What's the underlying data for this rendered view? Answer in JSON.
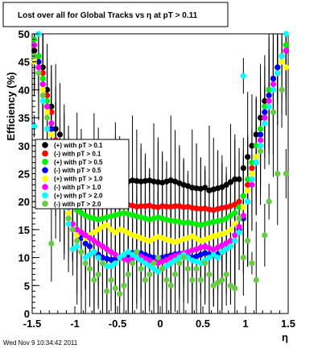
{
  "chart_data": {
    "type": "scatter",
    "title": "Lost over all for Global Tracks vs   η at pT > 0.11",
    "xlabel": "η",
    "ylabel": "Efficiency (%)",
    "xlim": [
      -1.5,
      1.5
    ],
    "ylim": [
      0,
      50
    ],
    "x_ticks": [
      "-1.5",
      "-1",
      "-0.5",
      "0",
      "0.5",
      "1",
      "1.5"
    ],
    "y_ticks": [
      "0",
      "5",
      "10",
      "15",
      "20",
      "25",
      "30",
      "35",
      "40",
      "45",
      "50"
    ],
    "grid": false,
    "legend_position": "center-left",
    "footer": "Wed Nov  9 10:34:42 2011",
    "series": [
      {
        "name": "(+) with pT > 0.1",
        "color": "#000000",
        "x": [
          -1.475,
          -1.425,
          -1.375,
          -1.325,
          -1.275,
          -1.225,
          -1.175,
          -1.125,
          -1.075,
          -1.025,
          -0.975,
          -0.925,
          -0.875,
          -0.825,
          -0.775,
          -0.725,
          -0.675,
          -0.625,
          -0.575,
          -0.525,
          -0.475,
          -0.425,
          -0.375,
          -0.325,
          -0.275,
          -0.225,
          -0.175,
          -0.125,
          -0.075,
          -0.025,
          0.025,
          0.075,
          0.125,
          0.175,
          0.225,
          0.275,
          0.325,
          0.375,
          0.425,
          0.475,
          0.525,
          0.575,
          0.625,
          0.675,
          0.725,
          0.775,
          0.825,
          0.875,
          0.925,
          0.975,
          1.025,
          1.075,
          1.125,
          1.175,
          1.225,
          1.275,
          1.325,
          1.375,
          1.425,
          1.475
        ],
        "values": [
          47,
          46,
          44,
          40,
          37,
          33,
          32,
          29,
          27,
          26,
          25.5,
          25,
          24.5,
          24.3,
          24.2,
          24,
          24,
          24,
          24,
          23.8,
          23.7,
          23.6,
          23.6,
          23.8,
          23.7,
          23.6,
          23.7,
          23.8,
          23.6,
          23.5,
          23.4,
          23.6,
          23.8,
          23.6,
          23.3,
          23,
          22.8,
          22.5,
          22.4,
          22.3,
          22.5,
          22,
          22.2,
          22.4,
          22.6,
          23,
          23.5,
          24,
          24,
          26,
          28,
          30,
          32,
          35,
          38,
          40,
          42,
          44,
          46,
          47
        ]
      },
      {
        "name": "(-) with pT > 0.1",
        "color": "#ff0000",
        "x": [
          -1.475,
          -1.425,
          -1.375,
          -1.325,
          -1.275,
          -1.225,
          -1.175,
          -1.125,
          -1.075,
          -1.025,
          -0.975,
          -0.925,
          -0.875,
          -0.825,
          -0.775,
          -0.725,
          -0.675,
          -0.625,
          -0.575,
          -0.525,
          -0.475,
          -0.425,
          -0.375,
          -0.325,
          -0.275,
          -0.225,
          -0.175,
          -0.125,
          -0.075,
          -0.025,
          0.025,
          0.075,
          0.125,
          0.175,
          0.225,
          0.275,
          0.325,
          0.375,
          0.425,
          0.475,
          0.525,
          0.575,
          0.625,
          0.675,
          0.725,
          0.775,
          0.825,
          0.875,
          0.925,
          0.975,
          1.025,
          1.075,
          1.125,
          1.175,
          1.225,
          1.275,
          1.325,
          1.375,
          1.425,
          1.475
        ],
        "values": [
          48,
          45,
          43,
          39,
          36,
          31,
          30,
          27,
          24,
          22,
          20.5,
          20,
          19.8,
          19.6,
          19.5,
          19.2,
          19.5,
          19.4,
          19.3,
          19.2,
          19.1,
          19.3,
          19.4,
          19.3,
          19.1,
          19.2,
          19.2,
          19.3,
          19.1,
          19,
          19.2,
          19.1,
          19.1,
          19.2,
          19.2,
          19,
          19.1,
          18.9,
          18.8,
          18.7,
          18.8,
          18.6,
          18.5,
          18.7,
          18.9,
          19,
          19.2,
          19.5,
          20,
          21,
          23,
          26,
          28,
          31,
          35,
          38,
          40,
          43,
          45,
          48
        ]
      },
      {
        "name": "(+) with pT > 0.5",
        "color": "#00ee00",
        "x": [
          -1.475,
          -1.425,
          -1.375,
          -1.325,
          -1.275,
          -1.225,
          -1.175,
          -1.125,
          -1.075,
          -1.025,
          -0.975,
          -0.925,
          -0.875,
          -0.825,
          -0.775,
          -0.725,
          -0.675,
          -0.625,
          -0.575,
          -0.525,
          -0.475,
          -0.425,
          -0.375,
          -0.325,
          -0.275,
          -0.225,
          -0.175,
          -0.125,
          -0.075,
          -0.025,
          0.025,
          0.075,
          0.125,
          0.175,
          0.225,
          0.275,
          0.325,
          0.375,
          0.425,
          0.475,
          0.525,
          0.575,
          0.625,
          0.675,
          0.725,
          0.775,
          0.825,
          0.875,
          0.925,
          0.975,
          1.025,
          1.075,
          1.125,
          1.175,
          1.225,
          1.275,
          1.325,
          1.375,
          1.425,
          1.475
        ],
        "values": [
          49,
          46,
          42,
          38,
          34,
          30,
          28,
          25,
          22,
          19.5,
          18.5,
          18,
          17.5,
          17.2,
          17,
          16.8,
          17,
          17.2,
          17.4,
          17.6,
          17.8,
          18,
          17.8,
          17.6,
          17.4,
          17.2,
          17,
          16.8,
          17,
          17.2,
          17,
          16.8,
          16.6,
          16.5,
          16.4,
          16.2,
          16.3,
          16.1,
          16,
          15.8,
          16,
          16.2,
          16.4,
          16.5,
          16.7,
          17,
          17.5,
          18,
          19,
          21,
          24,
          27,
          30,
          33,
          37,
          40,
          42,
          44,
          46,
          48
        ]
      },
      {
        "name": "(-) with pT > 0.5",
        "color": "#0000ff",
        "x": [
          -1.475,
          -1.425,
          -1.375,
          -1.325,
          -1.275,
          -1.225,
          -1.175,
          -1.125,
          -1.075,
          -1.025,
          -0.975,
          -0.925,
          -0.875,
          -0.825,
          -0.775,
          -0.725,
          -0.675,
          -0.625,
          -0.575,
          -0.525,
          -0.475,
          -0.425,
          -0.375,
          -0.325,
          -0.275,
          -0.225,
          -0.175,
          -0.125,
          -0.075,
          -0.025,
          0.025,
          0.075,
          0.125,
          0.175,
          0.225,
          0.275,
          0.325,
          0.375,
          0.425,
          0.475,
          0.525,
          0.575,
          0.625,
          0.675,
          0.725,
          0.775,
          0.825,
          0.875,
          0.925,
          0.975,
          1.025,
          1.075,
          1.125,
          1.175,
          1.225,
          1.275,
          1.325,
          1.375,
          1.425,
          1.475
        ],
        "values": [
          46,
          45,
          41,
          37,
          33,
          29,
          26,
          22,
          18,
          15,
          14,
          13.5,
          12.5,
          12,
          11,
          10.5,
          10,
          9.8,
          9.6,
          9.7,
          10,
          10.3,
          10.5,
          10.8,
          11,
          10.8,
          10.5,
          10.2,
          10,
          9.8,
          10,
          10.2,
          10.4,
          10.6,
          10.7,
          10.5,
          10.3,
          10,
          10.2,
          10.5,
          10.8,
          10.6,
          10.4,
          10.6,
          11,
          11.5,
          12,
          13,
          15,
          17,
          20,
          24,
          28,
          32,
          36,
          39,
          42,
          44,
          46,
          47
        ]
      },
      {
        "name": "(+) with pT > 1.0",
        "color": "#ffff00",
        "x": [
          -1.475,
          -1.425,
          -1.375,
          -1.325,
          -1.275,
          -1.225,
          -1.175,
          -1.125,
          -1.075,
          -1.025,
          -0.975,
          -0.925,
          -0.875,
          -0.825,
          -0.775,
          -0.725,
          -0.675,
          -0.625,
          -0.575,
          -0.525,
          -0.475,
          -0.425,
          -0.375,
          -0.325,
          -0.275,
          -0.225,
          -0.175,
          -0.125,
          -0.075,
          -0.025,
          0.025,
          0.075,
          0.125,
          0.175,
          0.225,
          0.275,
          0.325,
          0.375,
          0.425,
          0.475,
          0.525,
          0.575,
          0.625,
          0.675,
          0.725,
          0.775,
          0.825,
          0.875,
          0.925,
          0.975,
          1.025,
          1.075,
          1.125,
          1.175,
          1.225,
          1.275,
          1.325,
          1.375,
          1.425,
          1.475
        ],
        "values": [
          45,
          43,
          40,
          36,
          32,
          28,
          25,
          21,
          18,
          15,
          14,
          14.5,
          13.5,
          14,
          14.5,
          15,
          15.5,
          15.8,
          15,
          14.5,
          15,
          14.8,
          14.4,
          14,
          13.8,
          13.5,
          13.2,
          13,
          13.4,
          13.7,
          13.5,
          13.2,
          13,
          12.8,
          13,
          13.3,
          13.5,
          13.8,
          13.4,
          13,
          13.2,
          13.5,
          13.8,
          14,
          14.2,
          14.5,
          15,
          16,
          17,
          19,
          22,
          25,
          28,
          31,
          35,
          38,
          40,
          43,
          45,
          44
        ]
      },
      {
        "name": "(-) with pT > 1.0",
        "color": "#ff00ff",
        "x": [
          -1.475,
          -1.425,
          -1.375,
          -1.325,
          -1.275,
          -1.225,
          -1.175,
          -1.125,
          -1.075,
          -1.025,
          -0.975,
          -0.925,
          -0.875,
          -0.825,
          -0.775,
          -0.725,
          -0.675,
          -0.625,
          -0.575,
          -0.525,
          -0.475,
          -0.425,
          -0.375,
          -0.325,
          -0.275,
          -0.225,
          -0.175,
          -0.125,
          -0.075,
          -0.025,
          0.025,
          0.075,
          0.125,
          0.175,
          0.225,
          0.275,
          0.325,
          0.375,
          0.425,
          0.475,
          0.525,
          0.575,
          0.625,
          0.675,
          0.725,
          0.775,
          0.825,
          0.875,
          0.925,
          0.975,
          1.025,
          1.075,
          1.125,
          1.175,
          1.225,
          1.275,
          1.325,
          1.375,
          1.425,
          1.475
        ],
        "values": [
          48,
          44,
          41,
          37,
          34,
          30,
          26,
          22,
          19,
          16,
          15,
          14.5,
          14,
          13.5,
          13,
          12.5,
          12,
          11.5,
          11,
          10.5,
          10,
          9.8,
          9.5,
          9.8,
          10,
          10.2,
          9.8,
          9.5,
          9.2,
          9,
          9.3,
          9.6,
          10,
          10.3,
          10.5,
          10.8,
          11,
          11.3,
          11.5,
          11.8,
          12,
          11.7,
          11.4,
          11.8,
          12.2,
          12.6,
          13,
          14,
          15.5,
          17.5,
          20,
          23,
          27,
          31,
          35,
          38,
          41,
          43,
          46,
          47
        ]
      },
      {
        "name": "(+) with pT > 2.0",
        "color": "#00ffff",
        "x": [
          -1.475,
          -1.425,
          -1.375,
          -1.325,
          -1.275,
          -1.225,
          -1.175,
          -1.125,
          -1.075,
          -1.025,
          -0.975,
          -0.925,
          -0.875,
          -0.825,
          -0.775,
          -0.725,
          -0.675,
          -0.625,
          -0.575,
          -0.525,
          -0.475,
          -0.425,
          -0.375,
          -0.325,
          -0.275,
          -0.225,
          -0.175,
          -0.125,
          -0.075,
          -0.025,
          0.025,
          0.075,
          0.125,
          0.175,
          0.225,
          0.275,
          0.325,
          0.375,
          0.425,
          0.475,
          0.525,
          0.575,
          0.625,
          0.675,
          0.725,
          0.775,
          0.825,
          0.875,
          0.925,
          0.975,
          1.025,
          1.075,
          1.125,
          1.175,
          1.225,
          1.275,
          1.325,
          1.375,
          1.425,
          1.475
        ],
        "values": [
          33.5,
          50,
          38,
          33,
          29,
          25,
          22,
          19,
          16,
          11.5,
          12,
          11,
          10,
          10.5,
          11,
          10,
          9,
          8.5,
          8.5,
          9,
          10,
          10.5,
          11,
          10.5,
          10,
          9.5,
          9,
          8.5,
          8,
          7.5,
          8,
          8.5,
          9,
          9.5,
          10,
          10.5,
          10,
          9.5,
          9.3,
          9,
          9.5,
          10,
          10.5,
          10,
          11,
          11.5,
          12,
          13,
          14.5,
          42.5,
          20,
          24,
          27,
          30,
          34,
          37,
          40,
          43,
          46,
          50
        ]
      },
      {
        "name": "(-) with pT > 2.0",
        "color": "#66cc44",
        "x": [
          -1.475,
          -1.425,
          -1.375,
          -1.325,
          -1.275,
          -1.225,
          -1.175,
          -1.125,
          -1.075,
          -1.025,
          -0.975,
          -0.925,
          -0.875,
          -0.825,
          -0.775,
          -0.725,
          -0.675,
          -0.625,
          -0.575,
          -0.525,
          -0.475,
          -0.425,
          -0.375,
          -0.325,
          -0.275,
          -0.225,
          -0.175,
          -0.125,
          -0.075,
          -0.025,
          0.025,
          0.075,
          0.125,
          0.175,
          0.225,
          0.275,
          0.325,
          0.375,
          0.425,
          0.475,
          0.525,
          0.575,
          0.625,
          0.675,
          0.725,
          0.775,
          0.825,
          0.875,
          0.925,
          0.975,
          1.025,
          1.075,
          1.125,
          1.175,
          1.225,
          1.275,
          1.325,
          1.375,
          1.425,
          1.475
        ],
        "values": [
          46,
          43,
          39,
          35,
          12.5,
          27,
          24,
          20,
          17,
          15,
          13,
          11,
          9,
          8,
          6,
          7,
          9,
          4,
          6,
          4.5,
          3.5,
          5,
          7,
          9,
          11,
          8,
          6,
          7,
          9,
          10,
          8,
          6,
          5,
          7,
          9,
          10,
          8,
          6,
          8,
          6,
          9,
          7,
          5,
          5.5,
          6,
          7,
          5,
          4.5,
          17,
          10,
          13,
          9,
          6,
          29,
          14,
          20,
          36,
          25,
          40,
          25
        ]
      }
    ]
  }
}
